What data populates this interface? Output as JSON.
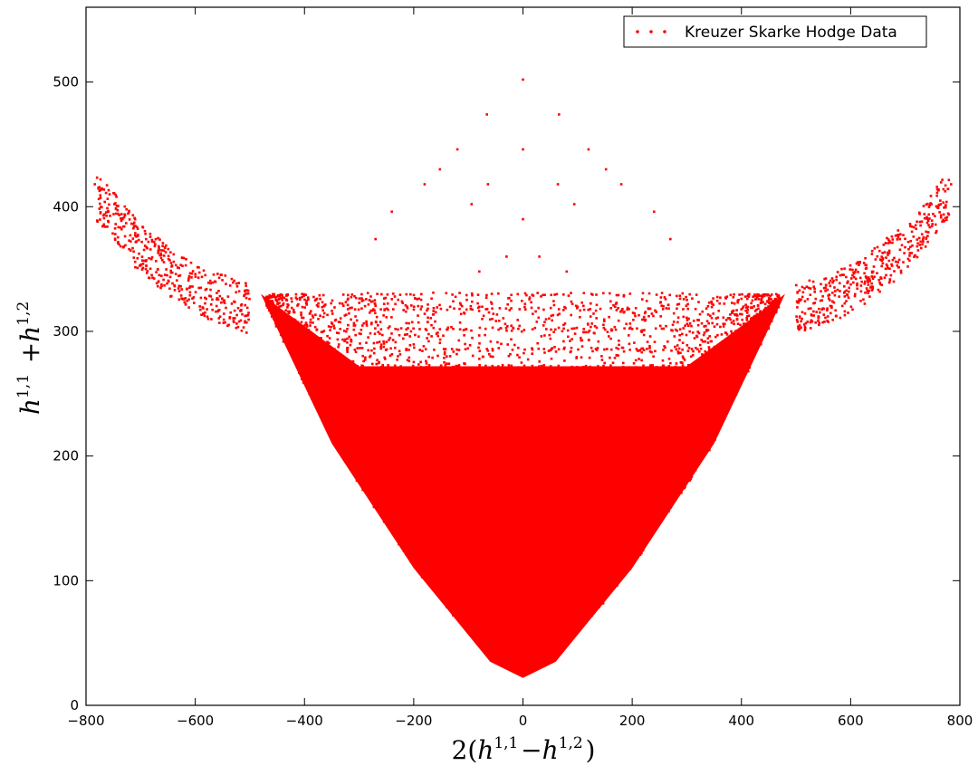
{
  "chart_data": {
    "type": "scatter",
    "title": "",
    "xlabel": {
      "prefix": "2(",
      "parts": [
        {
          "base": "h",
          "sup": "1,1"
        },
        {
          "text": "−"
        },
        {
          "base": "h",
          "sup": "1,2"
        }
      ],
      "suffix": ")"
    },
    "ylabel": {
      "parts": [
        {
          "base": "h",
          "sup": "1,1"
        },
        {
          "text": " +"
        },
        {
          "base": "h",
          "sup": "1,2"
        }
      ]
    },
    "xlim": [
      -800,
      800
    ],
    "ylim": [
      0,
      560
    ],
    "xticks": [
      -800,
      -600,
      -400,
      -200,
      0,
      200,
      400,
      600,
      800
    ],
    "xtick_labels": [
      "−800",
      "−600",
      "−400",
      "−200",
      "0",
      "200",
      "400",
      "600",
      "800"
    ],
    "yticks": [
      0,
      100,
      200,
      300,
      400,
      500
    ],
    "ytick_labels": [
      "0",
      "100",
      "200",
      "300",
      "400",
      "500"
    ],
    "grid": false,
    "legend": {
      "placement": "top-right",
      "entries": [
        "Kreuzer Skarke Hodge Data"
      ]
    },
    "series": [
      {
        "name": "Kreuzer Skarke Hodge Data",
        "color": "#ff0000",
        "marker": "dot",
        "points": [
          [
            0,
            502
          ],
          [
            -66,
            474
          ],
          [
            66,
            474
          ],
          [
            -120,
            446
          ],
          [
            0,
            446
          ],
          [
            120,
            446
          ],
          [
            -180,
            418
          ],
          [
            -64,
            418
          ],
          [
            64,
            418
          ],
          [
            180,
            418
          ],
          [
            -784,
            418
          ],
          [
            -770,
            414
          ],
          [
            -748,
            402
          ],
          [
            -735,
            394
          ],
          [
            -712,
            384
          ],
          [
            -690,
            374
          ],
          [
            784,
            418
          ],
          [
            770,
            414
          ],
          [
            748,
            402
          ],
          [
            735,
            394
          ],
          [
            712,
            384
          ],
          [
            690,
            374
          ],
          [
            -152,
            430
          ],
          [
            -94,
            402
          ],
          [
            94,
            402
          ],
          [
            152,
            430
          ],
          [
            0,
            390
          ],
          [
            -30,
            360
          ],
          [
            30,
            360
          ],
          [
            -80,
            348
          ],
          [
            80,
            348
          ],
          [
            -240,
            396
          ],
          [
            240,
            396
          ],
          [
            -270,
            374
          ],
          [
            270,
            374
          ]
        ]
      }
    ],
    "distribution_notes": {
      "dense_lower_bound": [
        [
          -480,
          330
        ],
        [
          -350,
          210
        ],
        [
          -200,
          110
        ],
        [
          -60,
          35
        ],
        [
          0,
          22
        ],
        [
          60,
          35
        ],
        [
          200,
          110
        ],
        [
          350,
          210
        ],
        [
          480,
          330
        ]
      ],
      "outer_branch_left": [
        [
          -780,
          420
        ],
        [
          -700,
          378
        ],
        [
          -600,
          345
        ],
        [
          -500,
          330
        ]
      ],
      "outer_branch_right": [
        [
          500,
          330
        ],
        [
          600,
          345
        ],
        [
          700,
          378
        ],
        [
          780,
          420
        ]
      ],
      "band_levels": [
        330,
        318,
        302,
        286,
        272
      ]
    }
  }
}
